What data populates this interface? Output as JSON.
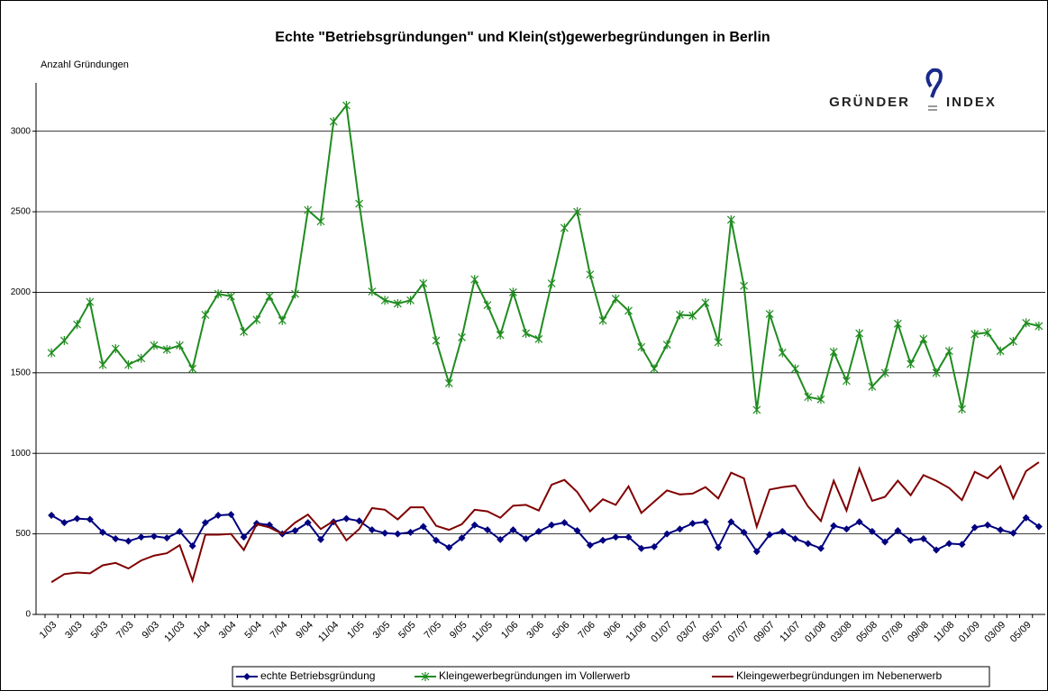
{
  "chart_data": {
    "type": "line",
    "title": "Echte \"Betriebsgründungen\" und Klein(st)gewerbegründungen in Berlin",
    "y_label": "Anzahl Gründungen",
    "logo": {
      "left": "GRÜNDER",
      "right": "INDEX"
    },
    "categories": [
      "1/03",
      null,
      "3/03",
      null,
      "5/03",
      null,
      "7/03",
      null,
      "9/03",
      null,
      "11/03",
      null,
      "1/04",
      null,
      "3/04",
      null,
      "5/04",
      null,
      "7/04",
      null,
      "9/04",
      null,
      "11/04",
      null,
      "1/05",
      null,
      "3/05",
      null,
      "5/05",
      null,
      "7/05",
      null,
      "9/05",
      null,
      "11/05",
      null,
      "1/06",
      null,
      "3/06",
      null,
      "5/06",
      null,
      "7/06",
      null,
      "9/06",
      null,
      "11/06",
      null,
      "01/07",
      null,
      "03/07",
      null,
      "05/07",
      null,
      "07/07",
      null,
      "09/07",
      null,
      "11/07",
      null,
      "01/08",
      null,
      "03/08",
      null,
      "05/08",
      null,
      "07/08",
      null,
      "09/08",
      null,
      "11/08",
      null,
      "01/09",
      null,
      "03/09",
      null,
      "05/09",
      null
    ],
    "series": [
      {
        "name": "echte Betriebsgründung",
        "color": "#000080",
        "marker": "diamond",
        "values": [
          615,
          570,
          595,
          590,
          510,
          470,
          455,
          480,
          485,
          475,
          515,
          425,
          570,
          615,
          620,
          480,
          565,
          555,
          500,
          520,
          570,
          465,
          575,
          595,
          580,
          525,
          505,
          500,
          510,
          545,
          460,
          415,
          475,
          555,
          525,
          465,
          525,
          470,
          515,
          555,
          570,
          520,
          430,
          460,
          480,
          480,
          410,
          420,
          500,
          530,
          565,
          575,
          415,
          575,
          510,
          390,
          495,
          515,
          470,
          440,
          410,
          550,
          530,
          575,
          515,
          450,
          520,
          460,
          470,
          400,
          440,
          435,
          540,
          555,
          525,
          505,
          600,
          545
        ]
      },
      {
        "name": "Kleingewerbegründungen im Vollerwerb",
        "color": "#1f8c1f",
        "marker": "star",
        "values": [
          1624,
          1700,
          1800,
          1940,
          1550,
          1650,
          1550,
          1590,
          1670,
          1645,
          1670,
          1525,
          1860,
          1990,
          1975,
          1755,
          1830,
          1975,
          1825,
          1990,
          2510,
          2440,
          3060,
          3160,
          2550,
          2005,
          1950,
          1930,
          1950,
          2055,
          1700,
          1435,
          1720,
          2080,
          1920,
          1735,
          2000,
          1745,
          1710,
          2055,
          2400,
          2500,
          2110,
          1825,
          1960,
          1885,
          1660,
          1525,
          1675,
          1860,
          1855,
          1935,
          1690,
          2450,
          2040,
          1270,
          1865,
          1625,
          1525,
          1350,
          1335,
          1630,
          1450,
          1745,
          1415,
          1500,
          1805,
          1555,
          1710,
          1500,
          1635,
          1275,
          1740,
          1750,
          1635,
          1695,
          1810,
          1790
        ]
      },
      {
        "name": "Kleingewerbegründungen im Nebenerwerb",
        "color": "#800000",
        "marker": "none",
        "values": [
          200,
          250,
          260,
          255,
          305,
          320,
          285,
          335,
          365,
          380,
          430,
          210,
          495,
          495,
          500,
          400,
          560,
          540,
          500,
          570,
          620,
          530,
          580,
          460,
          530,
          660,
          650,
          590,
          665,
          665,
          550,
          525,
          560,
          650,
          640,
          600,
          675,
          680,
          645,
          805,
          835,
          760,
          640,
          715,
          680,
          795,
          630,
          700,
          770,
          745,
          750,
          790,
          720,
          880,
          845,
          545,
          775,
          790,
          800,
          670,
          580,
          830,
          645,
          905,
          705,
          730,
          830,
          740,
          865,
          830,
          785,
          710,
          885,
          845,
          920,
          720,
          890,
          945
        ]
      }
    ],
    "ylim": [
      0,
      3300
    ],
    "yticks": [
      0,
      500,
      1000,
      1500,
      2000,
      2500,
      3000
    ],
    "grid": true
  }
}
